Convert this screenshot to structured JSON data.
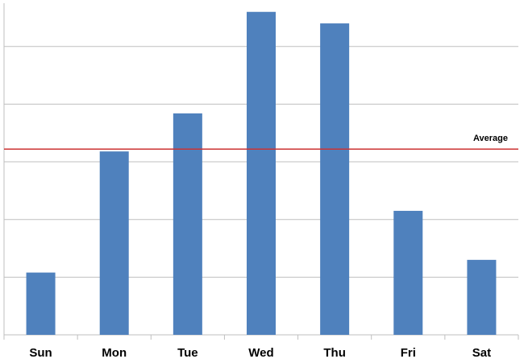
{
  "chart_data": {
    "type": "bar",
    "categories": [
      "Sun",
      "Mon",
      "Tue",
      "Wed",
      "Thu",
      "Fri",
      "Sat"
    ],
    "values": [
      1.08,
      3.18,
      3.84,
      5.6,
      5.4,
      2.15,
      1.3
    ],
    "color": "#4f81bd",
    "ylim": [
      0,
      5.75
    ],
    "yticks": [
      0,
      1,
      2,
      3,
      4,
      5
    ],
    "grid": true,
    "average": {
      "label": "Average",
      "value": 3.22,
      "color": "#cc3333"
    }
  }
}
